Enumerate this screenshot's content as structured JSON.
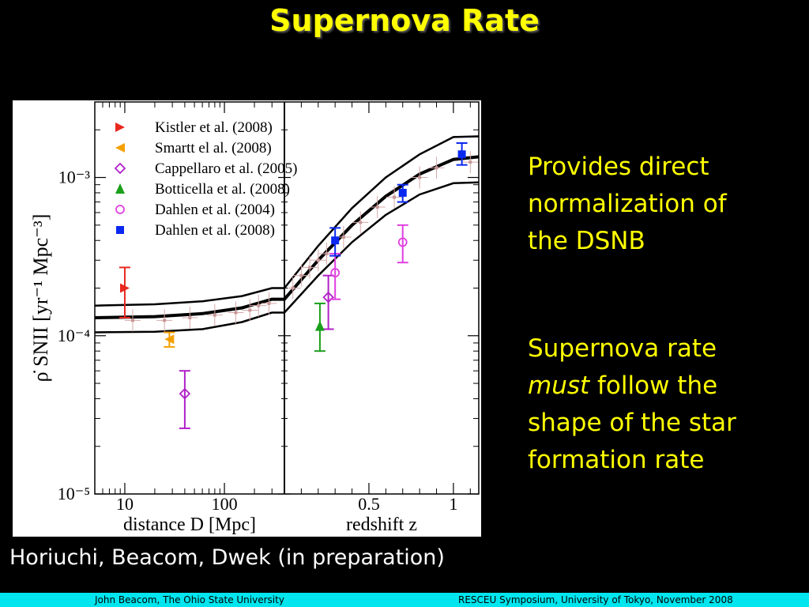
{
  "slide": {
    "title": "Supernova Rate",
    "points": [
      {
        "line1": "Provides direct",
        "line2": "normalization of",
        "line3": "the DSNB",
        "line4": ""
      },
      {
        "line1": "Supernova rate",
        "line2_em": "must",
        "line2_rest": " follow the",
        "line3": "shape of the star",
        "line4": "formation rate"
      }
    ],
    "caption": "Horiuchi, Beacom, Dwek (in preparation)",
    "footer_left": "John Beacom, The Ohio State University",
    "footer_right": "RESCEU Symposium, University of Tokyo, November 2008"
  },
  "chart_data": {
    "type": "scatter",
    "ylabel": "ρ̇ SNII [yr⁻¹ Mpc⁻³]",
    "yscale": "log",
    "ylim": [
      1e-05,
      0.003
    ],
    "y_tick_labels": [
      "10⁻⁵",
      "10⁻⁴",
      "10⁻³"
    ],
    "panels": [
      {
        "xlabel": "distance D [Mpc]",
        "xscale": "log",
        "xlim": [
          5,
          400
        ],
        "x_tick_labels": [
          "10",
          "100"
        ]
      },
      {
        "xlabel": "redshift z",
        "xlim": [
          0,
          1.15
        ],
        "x_tick_labels": [
          "0.5",
          "1"
        ]
      }
    ],
    "legend_position": "top-left",
    "series": [
      {
        "name": "Kistler et al. (2008)",
        "marker": "triangle-right",
        "color": "#e8281e",
        "points": [
          {
            "panel": 0,
            "x": 10,
            "y": 0.0002,
            "ylo": 0.00013,
            "yhi": 0.00027
          }
        ]
      },
      {
        "name": "Smartt el al. (2008)",
        "marker": "triangle-left",
        "color": "#f5a000",
        "points": [
          {
            "panel": 0,
            "x": 28,
            "y": 9.5e-05,
            "ylo": 8.5e-05,
            "yhi": 0.000105
          }
        ]
      },
      {
        "name": "Cappellaro et al. (2005)",
        "marker": "diamond-open",
        "color": "#b020c8",
        "points": [
          {
            "panel": 0,
            "x": 40,
            "y": 4.3e-05,
            "ylo": 2.6e-05,
            "yhi": 6e-05
          },
          {
            "panel": 1,
            "x": 0.26,
            "y": 0.000175,
            "ylo": 0.00011,
            "yhi": 0.00024
          }
        ]
      },
      {
        "name": "Botticella et al. (2008)",
        "marker": "triangle-up",
        "color": "#1aa01a",
        "points": [
          {
            "panel": 1,
            "x": 0.21,
            "y": 0.000115,
            "ylo": 8e-05,
            "yhi": 0.00016
          }
        ]
      },
      {
        "name": "Dahlen et al. (2004)",
        "marker": "circle-open",
        "color": "#e040e0",
        "points": [
          {
            "panel": 1,
            "x": 0.3,
            "y": 0.00025,
            "ylo": 0.00017,
            "yhi": 0.00033
          },
          {
            "panel": 1,
            "x": 0.7,
            "y": 0.00039,
            "ylo": 0.00029,
            "yhi": 0.0005
          }
        ]
      },
      {
        "name": "Dahlen et al. (2008)",
        "marker": "square",
        "color": "#0a28f0",
        "points": [
          {
            "panel": 1,
            "x": 0.3,
            "y": 0.0004,
            "ylo": 0.00032,
            "yhi": 0.00048
          },
          {
            "panel": 1,
            "x": 0.7,
            "y": 0.0008,
            "ylo": 0.0007,
            "yhi": 0.0009
          },
          {
            "panel": 1,
            "x": 1.05,
            "y": 0.0014,
            "ylo": 0.0012,
            "yhi": 0.00165
          }
        ]
      }
    ],
    "background_points": [
      {
        "panel": 0,
        "x": 12,
        "y": 0.000125
      },
      {
        "panel": 0,
        "x": 25,
        "y": 0.000125
      },
      {
        "panel": 0,
        "x": 45,
        "y": 0.00013
      },
      {
        "panel": 0,
        "x": 80,
        "y": 0.000135
      },
      {
        "panel": 0,
        "x": 130,
        "y": 0.00014
      },
      {
        "panel": 0,
        "x": 180,
        "y": 0.000145
      },
      {
        "panel": 0,
        "x": 220,
        "y": 0.000155
      },
      {
        "panel": 0,
        "x": 280,
        "y": 0.00016
      },
      {
        "panel": 1,
        "x": 0.05,
        "y": 0.0002
      },
      {
        "panel": 1,
        "x": 0.1,
        "y": 0.00024
      },
      {
        "panel": 1,
        "x": 0.15,
        "y": 0.00027
      },
      {
        "panel": 1,
        "x": 0.2,
        "y": 0.0003
      },
      {
        "panel": 1,
        "x": 0.25,
        "y": 0.00033
      },
      {
        "panel": 1,
        "x": 0.35,
        "y": 0.00042
      },
      {
        "panel": 1,
        "x": 0.45,
        "y": 0.00052
      },
      {
        "panel": 1,
        "x": 0.55,
        "y": 0.00065
      },
      {
        "panel": 1,
        "x": 0.65,
        "y": 0.00075
      },
      {
        "panel": 1,
        "x": 0.8,
        "y": 0.001
      },
      {
        "panel": 1,
        "x": 0.9,
        "y": 0.00115
      },
      {
        "panel": 1,
        "x": 1.1,
        "y": 0.00125
      }
    ],
    "model_band": {
      "panel0": {
        "x": [
          5,
          20,
          60,
          150,
          300
        ],
        "central": [
          0.00013,
          0.000132,
          0.000138,
          0.00015,
          0.00017
        ],
        "lower": [
          0.000105,
          0.000106,
          0.00011,
          0.000122,
          0.00014
        ],
        "upper": [
          0.000155,
          0.000158,
          0.000165,
          0.000178,
          0.0002
        ]
      },
      "panel1": {
        "x": [
          0,
          0.2,
          0.4,
          0.6,
          0.8,
          1.0,
          1.15
        ],
        "central": [
          0.00017,
          0.0003,
          0.0005,
          0.00076,
          0.00105,
          0.0013,
          0.00135
        ],
        "lower": [
          0.00014,
          0.00024,
          0.00039,
          0.00058,
          0.00078,
          0.00092,
          0.00093
        ],
        "upper": [
          0.0002,
          0.00037,
          0.00064,
          0.001,
          0.0014,
          0.0018,
          0.00182
        ]
      }
    }
  }
}
